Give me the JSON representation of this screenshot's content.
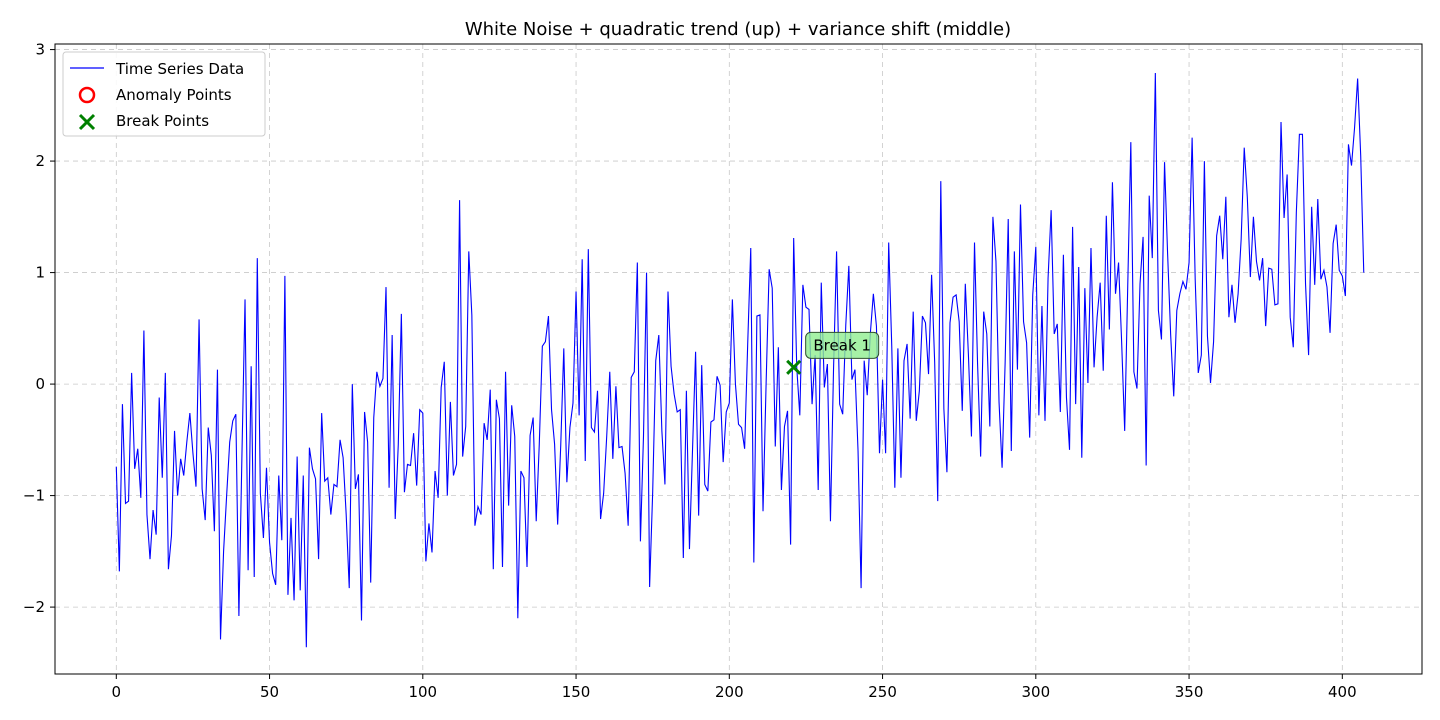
{
  "chart_data": {
    "type": "line",
    "title": "White Noise + quadratic trend (up) + variance shift (middle)",
    "xlabel": "",
    "ylabel": "",
    "xlim": [
      -20,
      426
    ],
    "ylim": [
      -2.6,
      3.05
    ],
    "xticks": [
      0,
      50,
      100,
      150,
      200,
      250,
      300,
      350,
      400
    ],
    "yticks": [
      -2,
      -1,
      0,
      1,
      2,
      3
    ],
    "ytick_labels": [
      "−2",
      "−1",
      "0",
      "1",
      "2",
      "3"
    ],
    "grid": true,
    "legend": {
      "placement": "top-left",
      "entries": [
        {
          "label": "Time Series Data",
          "marker": "line",
          "color": "#0000ff"
        },
        {
          "label": "Anomaly Points",
          "marker": "circle",
          "color": "#ff0000"
        },
        {
          "label": "Break Points",
          "marker": "x",
          "color": "#008000"
        }
      ]
    },
    "series": [
      {
        "name": "Time Series Data",
        "color": "#0000ff",
        "x_start": 0,
        "x_step": 1,
        "values": [
          -0.74,
          -1.68,
          -0.18,
          -1.07,
          -1.05,
          0.1,
          -0.76,
          -0.58,
          -1.02,
          0.48,
          -1.17,
          -1.57,
          -1.13,
          -1.35,
          -0.12,
          -0.84,
          0.1,
          -1.66,
          -1.36,
          -0.42,
          -1.0,
          -0.67,
          -0.82,
          -0.52,
          -0.26,
          -0.62,
          -0.92,
          0.58,
          -0.94,
          -1.22,
          -0.39,
          -0.64,
          -1.32,
          0.13,
          -2.29,
          -1.5,
          -1.0,
          -0.52,
          -0.33,
          -0.27,
          -2.08,
          -0.62,
          0.76,
          -1.67,
          0.16,
          -1.73,
          1.13,
          -0.98,
          -1.38,
          -0.75,
          -1.42,
          -1.7,
          -1.8,
          -0.82,
          -1.4,
          0.97,
          -1.89,
          -1.2,
          -1.94,
          -0.65,
          -1.85,
          -0.82,
          -2.36,
          -0.57,
          -0.76,
          -0.85,
          -1.57,
          -0.26,
          -0.87,
          -0.84,
          -1.17,
          -0.9,
          -0.92,
          -0.5,
          -0.66,
          -1.17,
          -1.83,
          0.0,
          -0.94,
          -0.81,
          -2.12,
          -0.25,
          -0.52,
          -1.78,
          -0.3,
          0.11,
          -0.02,
          0.05,
          0.87,
          -0.93,
          0.44,
          -1.21,
          -0.54,
          0.63,
          -0.97,
          -0.72,
          -0.73,
          -0.44,
          -0.91,
          -0.23,
          -0.26,
          -1.59,
          -1.25,
          -1.51,
          -0.78,
          -1.02,
          -0.03,
          0.2,
          -1.0,
          -0.16,
          -0.82,
          -0.72,
          1.65,
          -0.65,
          -0.38,
          1.19,
          0.62,
          -1.27,
          -1.1,
          -1.17,
          -0.35,
          -0.5,
          -0.05,
          -1.66,
          -0.14,
          -0.31,
          -1.64,
          0.11,
          -1.09,
          -0.19,
          -0.47,
          -2.1,
          -0.78,
          -0.84,
          -1.64,
          -0.46,
          -0.3,
          -1.23,
          -0.54,
          0.34,
          0.38,
          0.61,
          -0.23,
          -0.54,
          -1.26,
          -0.55,
          0.32,
          -0.88,
          -0.39,
          -0.17,
          0.83,
          -0.28,
          1.12,
          -0.69,
          1.21,
          -0.39,
          -0.43,
          -0.06,
          -1.21,
          -0.98,
          -0.47,
          0.11,
          -0.67,
          -0.02,
          -0.57,
          -0.56,
          -0.8,
          -1.27,
          0.06,
          0.11,
          1.09,
          -1.41,
          -0.47,
          1.0,
          -1.82,
          -0.97,
          0.21,
          0.44,
          -0.42,
          -0.9,
          0.83,
          0.16,
          -0.09,
          -0.25,
          -0.23,
          -1.56,
          -0.06,
          -1.48,
          -0.59,
          0.29,
          -1.18,
          0.17,
          -0.9,
          -0.96,
          -0.34,
          -0.32,
          0.07,
          -0.01,
          -0.7,
          -0.25,
          -0.17,
          0.76,
          0.0,
          -0.36,
          -0.39,
          -0.58,
          0.36,
          1.22,
          -1.6,
          0.61,
          0.62,
          -1.14,
          0.0,
          1.03,
          0.86,
          -0.56,
          0.33,
          -0.95,
          -0.38,
          -0.24,
          -1.44,
          1.31,
          0.15,
          -0.28,
          0.89,
          0.69,
          0.67,
          -0.18,
          0.26,
          -0.95,
          0.91,
          -0.03,
          0.18,
          -1.23,
          0.13,
          1.19,
          -0.18,
          -0.27,
          0.53,
          1.06,
          0.04,
          0.13,
          -0.6,
          -1.83,
          0.21,
          -0.1,
          0.45,
          0.81,
          0.52,
          -0.62,
          0.04,
          -0.62,
          1.27,
          0.34,
          -0.93,
          0.32,
          -0.84,
          0.21,
          0.36,
          -0.31,
          0.65,
          -0.33,
          -0.06,
          0.61,
          0.55,
          0.09,
          0.98,
          0.2,
          -1.05,
          1.82,
          -0.22,
          -0.79,
          0.55,
          0.78,
          0.8,
          0.56,
          -0.24,
          0.9,
          0.27,
          -0.47,
          1.27,
          0.18,
          -0.65,
          0.65,
          0.45,
          -0.38,
          1.5,
          1.1,
          -0.16,
          -0.75,
          0.2,
          1.48,
          -0.6,
          1.19,
          0.13,
          1.61,
          0.56,
          0.37,
          -0.48,
          0.8,
          1.23,
          -0.28,
          0.7,
          -0.33,
          0.95,
          1.56,
          0.45,
          0.54,
          -0.25,
          1.16,
          -0.12,
          -0.59,
          1.41,
          -0.18,
          1.05,
          -0.66,
          0.86,
          0.01,
          1.22,
          0.15,
          0.6,
          0.91,
          0.12,
          1.51,
          0.49,
          1.81,
          0.81,
          1.09,
          0.38,
          -0.42,
          0.89,
          2.17,
          0.11,
          -0.04,
          0.9,
          1.32,
          -0.73,
          1.69,
          1.13,
          2.79,
          0.66,
          0.4,
          1.99,
          1.17,
          0.44,
          -0.11,
          0.66,
          0.81,
          0.92,
          0.85,
          1.09,
          2.21,
          0.94,
          0.1,
          0.26,
          2.0,
          0.43,
          0.01,
          0.38,
          1.33,
          1.51,
          1.12,
          1.68,
          0.6,
          0.89,
          0.55,
          0.81,
          1.3,
          2.12,
          1.68,
          0.96,
          1.5,
          1.1,
          0.93,
          1.13,
          0.52,
          1.04,
          1.03,
          0.71,
          0.72,
          2.35,
          1.49,
          1.88,
          0.6,
          0.33,
          1.54,
          2.24,
          2.24,
          0.9,
          0.26,
          1.59,
          0.89,
          1.66,
          0.94,
          1.02,
          0.87,
          0.46,
          1.26,
          1.43,
          1.02,
          0.97,
          0.79,
          2.15,
          1.96,
          2.3,
          2.74,
          2.05,
          1.0
        ]
      }
    ],
    "anomaly_points": [],
    "break_points": [
      {
        "x": 221,
        "y": 0.15,
        "label": "Break 1"
      }
    ]
  }
}
